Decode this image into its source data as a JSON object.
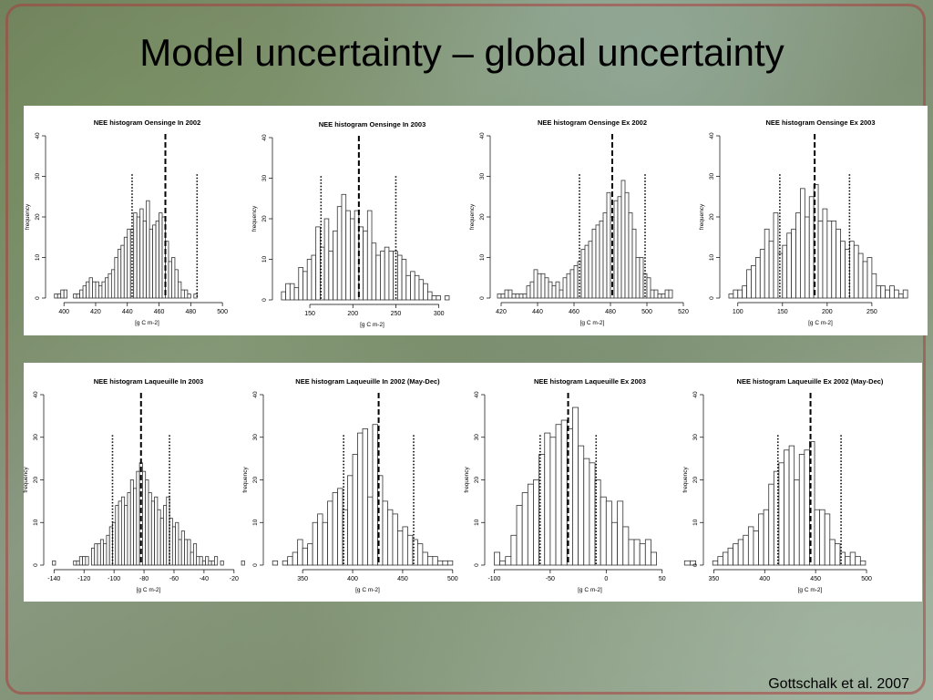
{
  "slide": {
    "title": "Model uncertainty – global uncertainty",
    "citation": "Gottschalk et al. 2007"
  },
  "chart_data": [
    {
      "type": "bar",
      "title": "NEE histogram Oensinge In 2002",
      "xlabel": "[g C m-2]",
      "ylabel": "frequency",
      "xlim": [
        393,
        512
      ],
      "xticks": [
        400,
        420,
        440,
        460,
        480,
        500
      ],
      "ylim": [
        0,
        40
      ],
      "yticks": [
        0,
        10,
        20,
        30,
        40
      ],
      "bin_start": 394,
      "bin_width": 2,
      "values": [
        1,
        1,
        2,
        2,
        0,
        0,
        1,
        1,
        2,
        3,
        4,
        5,
        4,
        4,
        3,
        4,
        5,
        6,
        7,
        10,
        12,
        13,
        15,
        17,
        17,
        21,
        20,
        22,
        19,
        24,
        17,
        18,
        19,
        21,
        20,
        14,
        9,
        10,
        7,
        4,
        2,
        2,
        1,
        0,
        1
      ],
      "lines": {
        "mean": 464,
        "lower": 443,
        "upper": 484
      }
    },
    {
      "type": "bar",
      "title": "NEE histogram Oensinge In 2003",
      "xlabel": "[g C m-2]",
      "ylabel": "frequency",
      "xlim": [
        115,
        330
      ],
      "xticks": [
        150,
        200,
        250,
        300
      ],
      "ylim": [
        0,
        40
      ],
      "yticks": [
        0,
        10,
        20,
        30,
        40
      ],
      "bin_start": 117,
      "bin_width": 5,
      "values": [
        2,
        4,
        4,
        3,
        8,
        7,
        10,
        11,
        18,
        13,
        20,
        12,
        17,
        23,
        26,
        22,
        20,
        22,
        18,
        17,
        22,
        14,
        11,
        12,
        13,
        12,
        12,
        11,
        10,
        6,
        7,
        6,
        5,
        4,
        2,
        1,
        1,
        0,
        1
      ],
      "lines": {
        "mean": 207,
        "lower": 163,
        "upper": 250
      }
    },
    {
      "type": "bar",
      "title": "NEE histogram Oensinge Ex 2002",
      "xlabel": "[g C m-2]",
      "ylabel": "frequency",
      "xlim": [
        418,
        522
      ],
      "xticks": [
        420,
        440,
        460,
        480,
        500,
        520
      ],
      "ylim": [
        0,
        40
      ],
      "yticks": [
        0,
        10,
        20,
        30,
        40
      ],
      "bin_start": 418,
      "bin_width": 2,
      "values": [
        1,
        1,
        2,
        2,
        1,
        1,
        1,
        1,
        3,
        4,
        7,
        6,
        6,
        5,
        4,
        3,
        4,
        2,
        5,
        6,
        7,
        8,
        9,
        12,
        13,
        14,
        17,
        18,
        19,
        21,
        26,
        20,
        24,
        25,
        29,
        26,
        21,
        17,
        10,
        10,
        6,
        5,
        2,
        2,
        1,
        1,
        2,
        2
      ],
      "lines": {
        "mean": 481,
        "lower": 463,
        "upper": 499
      }
    },
    {
      "type": "bar",
      "title": "NEE histogram Oensinge Ex 2003",
      "xlabel": "[g C m-2]",
      "ylabel": "frequency",
      "xlim": [
        88,
        297
      ],
      "xticks": [
        100,
        150,
        200,
        250
      ],
      "ylim": [
        0,
        40
      ],
      "yticks": [
        0,
        10,
        20,
        30,
        40
      ],
      "bin_start": 90,
      "bin_width": 5,
      "values": [
        1,
        2,
        2,
        3,
        7,
        8,
        10,
        12,
        17,
        14,
        21,
        11,
        13,
        16,
        17,
        21,
        27,
        20,
        25,
        28,
        19,
        22,
        19,
        19,
        17,
        14,
        12,
        14,
        13,
        11,
        9,
        10,
        6,
        3,
        3,
        2,
        3,
        2,
        1,
        2
      ],
      "lines": {
        "mean": 186,
        "lower": 147,
        "upper": 225
      }
    },
    {
      "type": "bar",
      "title": "NEE histogram Laqueuille In 2003",
      "xlabel": "[g C m-2]",
      "ylabel": "frequency",
      "xlim": [
        -142,
        -12
      ],
      "xticks": [
        -140,
        -120,
        -100,
        -80,
        -60,
        -40,
        -20
      ],
      "ylim": [
        0,
        40
      ],
      "yticks": [
        0,
        10,
        20,
        30,
        40
      ],
      "bin_start": -141,
      "bin_width": 2,
      "values": [
        1,
        0,
        0,
        0,
        0,
        0,
        0,
        1,
        1,
        2,
        2,
        2,
        0,
        4,
        5,
        5,
        6,
        5,
        7,
        9,
        10,
        14,
        15,
        16,
        14,
        17,
        20,
        18,
        22,
        24,
        22,
        20,
        17,
        15,
        16,
        13,
        11,
        14,
        16,
        11,
        9,
        10,
        6,
        8,
        6,
        6,
        3,
        5,
        2,
        2,
        1,
        2,
        1,
        1,
        2,
        0,
        1,
        0,
        0,
        0,
        0,
        0,
        0,
        1
      ],
      "lines": {
        "mean": -82,
        "lower": -101,
        "upper": -63
      }
    },
    {
      "type": "bar",
      "title": "NEE histogram Laqueuille In 2002 (May-Dec)",
      "xlabel": "[g C m-2]",
      "ylabel": "frequency",
      "xlim": [
        318,
        512
      ],
      "xticks": [
        350,
        400,
        450,
        500
      ],
      "ylim": [
        0,
        40
      ],
      "yticks": [
        0,
        10,
        20,
        30,
        40
      ],
      "bin_start": 320,
      "bin_width": 5,
      "values": [
        1,
        0,
        1,
        2,
        3,
        6,
        4,
        5,
        10,
        12,
        10,
        15,
        17,
        18,
        13,
        21,
        26,
        31,
        32,
        16,
        33,
        21,
        15,
        13,
        12,
        8,
        9,
        7,
        6,
        5,
        3,
        2,
        2,
        1,
        1,
        1
      ],
      "lines": {
        "mean": 426,
        "lower": 391,
        "upper": 461
      }
    },
    {
      "type": "bar",
      "title": "NEE histogram Laqueuille Ex 2003",
      "xlabel": "[g C m-2]",
      "ylabel": "frequency",
      "xlim": [
        -102,
        73
      ],
      "xticks": [
        -100,
        -50,
        0,
        50
      ],
      "ylim": [
        0,
        40
      ],
      "yticks": [
        0,
        10,
        20,
        30,
        40
      ],
      "bin_start": -100,
      "bin_width": 5,
      "values": [
        3,
        1,
        2,
        7,
        14,
        17,
        19,
        20,
        26,
        31,
        30,
        33,
        34,
        32,
        37,
        28,
        25,
        24,
        20,
        16,
        15,
        10,
        15,
        9,
        6,
        6,
        5,
        6,
        3,
        0,
        0,
        0,
        0,
        0,
        1,
        1
      ],
      "lines": {
        "mean": -34,
        "lower": -59,
        "upper": -9
      }
    },
    {
      "type": "bar",
      "title": "NEE histogram Laqueuille Ex 2002 (May-Dec)",
      "xlabel": "[g C m-2]",
      "ylabel": "frequency",
      "xlim": [
        347,
        542
      ],
      "xticks": [
        350,
        400,
        450,
        500
      ],
      "ylim": [
        0,
        40
      ],
      "yticks": [
        0,
        10,
        20,
        30,
        40
      ],
      "bin_start": 349,
      "bin_width": 5,
      "values": [
        1,
        2,
        3,
        4,
        5,
        6,
        7,
        9,
        8,
        12,
        13,
        19,
        22,
        24,
        27,
        28,
        20,
        26,
        27,
        29,
        13,
        13,
        12,
        6,
        5,
        3,
        2,
        3,
        2,
        1
      ],
      "lines": {
        "mean": 445,
        "lower": 413,
        "upper": 475
      }
    }
  ]
}
